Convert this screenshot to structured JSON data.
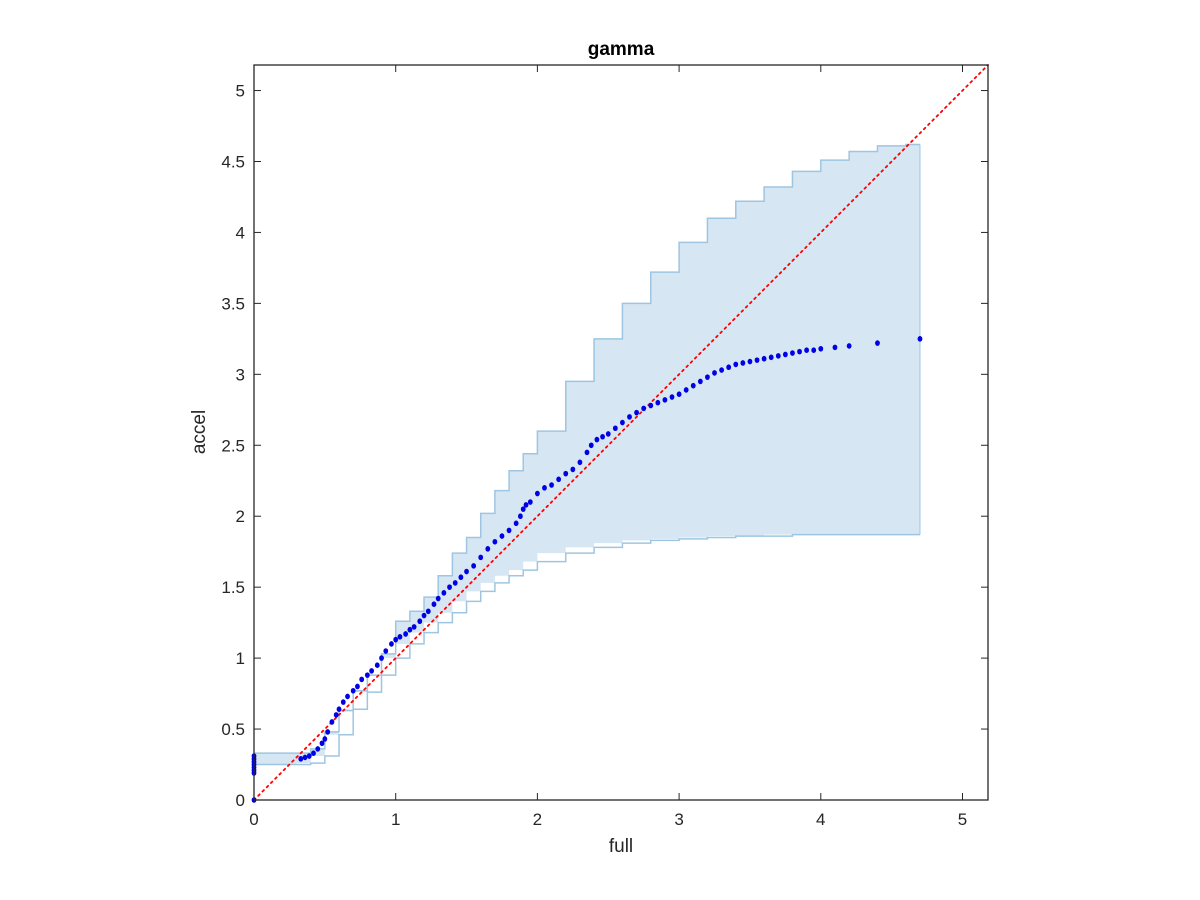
{
  "chart_data": {
    "type": "scatter",
    "title": "gamma",
    "xlabel": "full",
    "ylabel": "accel",
    "xlim": [
      0,
      5.18
    ],
    "ylim": [
      0,
      5.18
    ],
    "xticks": [
      0,
      1,
      2,
      3,
      4,
      5
    ],
    "xtick_labels": [
      "0",
      "1",
      "2",
      "3",
      "4",
      "5"
    ],
    "yticks": [
      0,
      0.5,
      1,
      1.5,
      2,
      2.5,
      3,
      3.5,
      4,
      4.5,
      5
    ],
    "ytick_labels": [
      "0",
      "0.5",
      "1",
      "1.5",
      "2",
      "2.5",
      "3",
      "3.5",
      "4",
      "4.5",
      "5"
    ],
    "grid": false,
    "reference_line": {
      "x": [
        0,
        5.18
      ],
      "y": [
        0,
        5.18
      ],
      "color": "#ff0000",
      "style": "dotted"
    },
    "band": {
      "fill_color": "#d6e6f3",
      "edge_color": "#9ec6e2",
      "x": [
        0.0,
        0.3,
        0.4,
        0.5,
        0.6,
        0.7,
        0.8,
        0.9,
        1.0,
        1.1,
        1.2,
        1.3,
        1.4,
        1.5,
        1.6,
        1.7,
        1.8,
        1.9,
        2.0,
        2.2,
        2.4,
        2.6,
        2.8,
        3.0,
        3.2,
        3.4,
        3.6,
        3.8,
        4.0,
        4.2,
        4.4,
        4.6,
        4.7
      ],
      "upper": [
        0.33,
        0.33,
        0.36,
        0.48,
        0.63,
        0.77,
        0.88,
        1.03,
        1.26,
        1.33,
        1.43,
        1.58,
        1.74,
        1.85,
        2.02,
        2.18,
        2.32,
        2.44,
        2.6,
        2.95,
        3.25,
        3.5,
        3.72,
        3.93,
        4.1,
        4.22,
        4.32,
        4.43,
        4.51,
        4.57,
        4.61,
        4.62,
        4.62
      ],
      "lower": [
        0.25,
        0.25,
        0.26,
        0.31,
        0.46,
        0.64,
        0.76,
        0.88,
        1.0,
        1.1,
        1.18,
        1.25,
        1.32,
        1.4,
        1.47,
        1.53,
        1.58,
        1.62,
        1.68,
        1.74,
        1.78,
        1.81,
        1.83,
        1.84,
        1.85,
        1.86,
        1.86,
        1.87,
        1.87,
        1.87,
        1.87,
        1.87,
        1.87
      ]
    },
    "series": [
      {
        "color": "#0000e6",
        "x": [
          0.0,
          0.0,
          0.0,
          0.0,
          0.0,
          0.0,
          0.0,
          0.0,
          0.33,
          0.36,
          0.39,
          0.42,
          0.45,
          0.48,
          0.5,
          0.52,
          0.55,
          0.58,
          0.6,
          0.63,
          0.66,
          0.7,
          0.73,
          0.76,
          0.8,
          0.83,
          0.87,
          0.9,
          0.93,
          0.97,
          1.0,
          1.03,
          1.07,
          1.1,
          1.13,
          1.17,
          1.2,
          1.23,
          1.27,
          1.3,
          1.34,
          1.38,
          1.42,
          1.46,
          1.5,
          1.55,
          1.6,
          1.65,
          1.7,
          1.75,
          1.8,
          1.85,
          1.88,
          1.9,
          1.92,
          1.95,
          2.0,
          2.05,
          2.1,
          2.15,
          2.2,
          2.25,
          2.3,
          2.35,
          2.38,
          2.42,
          2.46,
          2.5,
          2.55,
          2.6,
          2.65,
          2.7,
          2.75,
          2.8,
          2.85,
          2.9,
          2.95,
          3.0,
          3.05,
          3.1,
          3.15,
          3.2,
          3.25,
          3.3,
          3.35,
          3.4,
          3.45,
          3.5,
          3.55,
          3.6,
          3.65,
          3.7,
          3.75,
          3.8,
          3.85,
          3.9,
          3.95,
          4.0,
          4.1,
          4.2,
          4.4,
          4.7
        ],
        "y": [
          0.0,
          0.19,
          0.21,
          0.23,
          0.25,
          0.27,
          0.29,
          0.31,
          0.29,
          0.3,
          0.31,
          0.33,
          0.36,
          0.4,
          0.43,
          0.48,
          0.55,
          0.6,
          0.64,
          0.69,
          0.73,
          0.77,
          0.8,
          0.85,
          0.88,
          0.91,
          0.95,
          1.0,
          1.05,
          1.1,
          1.13,
          1.15,
          1.17,
          1.2,
          1.22,
          1.26,
          1.3,
          1.33,
          1.38,
          1.42,
          1.46,
          1.5,
          1.53,
          1.57,
          1.61,
          1.65,
          1.71,
          1.77,
          1.82,
          1.86,
          1.9,
          1.95,
          2.0,
          2.05,
          2.08,
          2.1,
          2.16,
          2.2,
          2.22,
          2.26,
          2.3,
          2.33,
          2.38,
          2.45,
          2.5,
          2.54,
          2.56,
          2.58,
          2.62,
          2.66,
          2.7,
          2.73,
          2.76,
          2.78,
          2.8,
          2.82,
          2.84,
          2.86,
          2.89,
          2.92,
          2.95,
          2.98,
          3.01,
          3.03,
          3.05,
          3.07,
          3.08,
          3.09,
          3.1,
          3.11,
          3.12,
          3.13,
          3.14,
          3.15,
          3.16,
          3.17,
          3.17,
          3.18,
          3.19,
          3.2,
          3.22,
          3.25
        ]
      }
    ]
  }
}
